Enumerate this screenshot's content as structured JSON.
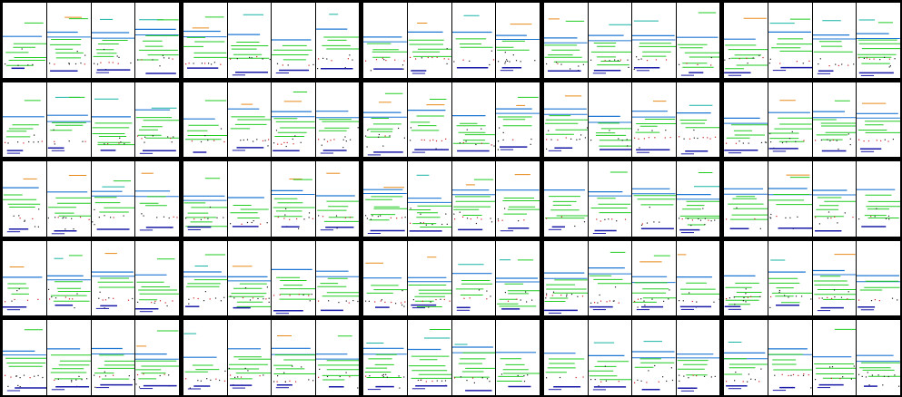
{
  "grid": {
    "rows": 5,
    "cols": 5,
    "panels_per_block": 4
  },
  "colors": {
    "background": "#000000",
    "panel": "#ffffff",
    "blue": "#1f77d4",
    "green": "#22cc22",
    "dark_blue": "#1a1aa8",
    "orange": "#e88a1a",
    "teal": "#17b3a3",
    "dark": "#222222",
    "red": "#cc2222"
  }
}
